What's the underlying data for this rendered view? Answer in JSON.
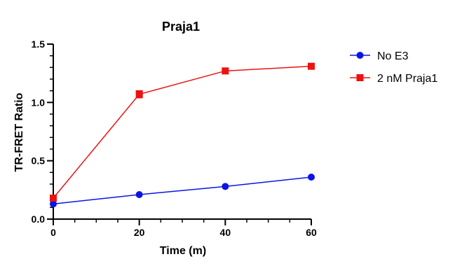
{
  "chart_data": {
    "type": "line",
    "title": "Praja1",
    "xlabel": "Time (m)",
    "ylabel": "TR-FRET Ratio",
    "x": [
      0,
      20,
      40,
      60
    ],
    "xlim": [
      0,
      60
    ],
    "ylim": [
      0,
      1.5
    ],
    "x_ticks": [
      0,
      20,
      40,
      60
    ],
    "y_ticks": [
      0.0,
      0.5,
      1.0,
      1.5
    ],
    "x_tick_labels": [
      "0",
      "20",
      "40",
      "60"
    ],
    "y_tick_labels": [
      "0.0",
      "0.5",
      "1.0",
      "1.5"
    ],
    "x_minor_step": 5,
    "y_minor_step": 0.1,
    "grid": false,
    "legend_position": "top-right",
    "series": [
      {
        "name": "No E3",
        "color": "#0a14e6",
        "marker": "circle",
        "values": [
          0.13,
          0.21,
          0.28,
          0.36
        ],
        "error": [
          0.0,
          0.0,
          0.0,
          0.0
        ]
      },
      {
        "name": "2 nM Praja1",
        "color": "#ee1111",
        "marker": "square",
        "values": [
          0.18,
          1.07,
          1.27,
          1.31
        ],
        "error": [
          0.0,
          0.03,
          0.0,
          0.0
        ]
      }
    ]
  }
}
